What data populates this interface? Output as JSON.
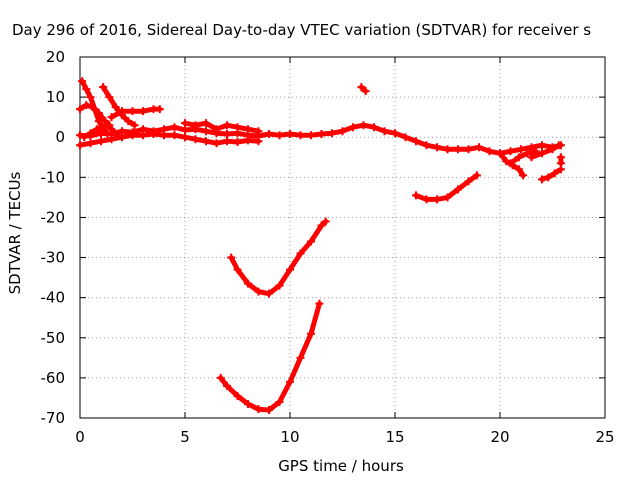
{
  "chart_data": {
    "type": "scatter",
    "title": "Day 296 of 2016, Sidereal Day-to-day VTEC variation (SDTVAR) for receiver s",
    "xlabel": "GPS time / hours",
    "ylabel": "SDTVAR / TECUs",
    "xlim": [
      0,
      25
    ],
    "ylim": [
      -70,
      20
    ],
    "xticks": [
      0,
      5,
      10,
      15,
      20,
      25
    ],
    "yticks": [
      -70,
      -60,
      -50,
      -40,
      -30,
      -20,
      -10,
      0,
      10,
      20
    ],
    "grid": true,
    "legend": "none",
    "marker": "plus",
    "series_color": "#ff0000",
    "series": [
      {
        "points": [
          [
            0.0,
            0.5
          ],
          [
            0.5,
            0.3
          ],
          [
            1.0,
            1.0
          ],
          [
            1.5,
            0.8
          ],
          [
            2.0,
            1.5
          ],
          [
            2.5,
            1.2
          ],
          [
            3.0,
            2.0
          ],
          [
            3.5,
            1.5
          ],
          [
            4.0,
            2.0
          ],
          [
            4.5,
            2.5
          ],
          [
            5.0,
            1.8
          ],
          [
            5.5,
            2.0
          ],
          [
            6.0,
            1.5
          ],
          [
            6.5,
            1.0
          ],
          [
            7.0,
            0.8
          ],
          [
            7.5,
            1.0
          ],
          [
            8.0,
            0.5
          ],
          [
            8.5,
            0.3
          ],
          [
            9.0,
            0.8
          ],
          [
            9.5,
            0.5
          ],
          [
            10.0,
            0.8
          ],
          [
            10.5,
            0.5
          ],
          [
            11.0,
            0.5
          ],
          [
            11.5,
            0.8
          ],
          [
            12.0,
            1.0
          ],
          [
            12.5,
            1.5
          ],
          [
            13.0,
            2.5
          ],
          [
            13.5,
            3.0
          ],
          [
            14.0,
            2.5
          ],
          [
            14.5,
            1.5
          ],
          [
            15.0,
            1.0
          ],
          [
            15.5,
            0.0
          ],
          [
            16.0,
            -1.0
          ],
          [
            16.5,
            -2.0
          ],
          [
            17.0,
            -2.5
          ],
          [
            17.5,
            -3.0
          ],
          [
            18.0,
            -3.0
          ],
          [
            18.5,
            -3.0
          ],
          [
            19.0,
            -2.5
          ],
          [
            19.5,
            -3.5
          ],
          [
            20.0,
            -4.0
          ],
          [
            20.5,
            -3.5
          ],
          [
            21.0,
            -3.0
          ],
          [
            21.5,
            -2.5
          ],
          [
            22.0,
            -2.0
          ],
          [
            22.5,
            -2.5
          ],
          [
            22.9,
            -2.0
          ]
        ]
      },
      {
        "points": [
          [
            0.0,
            -2.0
          ],
          [
            0.5,
            -1.5
          ],
          [
            1.0,
            -1.0
          ],
          [
            1.5,
            -0.5
          ],
          [
            2.0,
            0.0
          ],
          [
            2.5,
            0.5
          ],
          [
            3.0,
            0.5
          ],
          [
            3.5,
            0.8
          ],
          [
            4.0,
            0.5
          ],
          [
            4.5,
            0.5
          ],
          [
            5.0,
            0.0
          ],
          [
            5.5,
            -0.5
          ],
          [
            6.0,
            -1.0
          ],
          [
            6.5,
            -1.5
          ],
          [
            7.0,
            -1.0
          ],
          [
            7.5,
            -1.2
          ],
          [
            8.0,
            -0.8
          ],
          [
            8.5,
            -1.0
          ]
        ]
      },
      {
        "points": [
          [
            5.0,
            3.5
          ],
          [
            5.5,
            3.0
          ],
          [
            6.0,
            3.5
          ],
          [
            6.5,
            2.0
          ],
          [
            7.0,
            3.0
          ],
          [
            7.5,
            2.5
          ],
          [
            8.0,
            2.0
          ],
          [
            8.5,
            1.5
          ]
        ]
      },
      {
        "points": [
          [
            0.1,
            14.0
          ],
          [
            0.3,
            12.0
          ],
          [
            0.5,
            10.0
          ],
          [
            0.7,
            7.0
          ],
          [
            0.9,
            4.0
          ],
          [
            1.1,
            2.0
          ],
          [
            1.3,
            1.0
          ]
        ]
      },
      {
        "points": [
          [
            0.0,
            7.0
          ],
          [
            0.3,
            8.0
          ],
          [
            0.6,
            7.5
          ],
          [
            0.9,
            6.0
          ],
          [
            1.2,
            4.0
          ],
          [
            1.5,
            2.0
          ],
          [
            1.8,
            0.5
          ]
        ]
      },
      {
        "points": [
          [
            1.1,
            12.5
          ],
          [
            1.4,
            10.0
          ],
          [
            1.7,
            7.5
          ],
          [
            2.0,
            5.5
          ],
          [
            2.3,
            4.0
          ],
          [
            2.6,
            3.0
          ]
        ]
      },
      {
        "points": [
          [
            1.5,
            5.0
          ],
          [
            2.0,
            6.5
          ],
          [
            2.5,
            6.5
          ],
          [
            3.0,
            6.5
          ],
          [
            3.5,
            7.0
          ],
          [
            3.8,
            7.0
          ]
        ]
      },
      {
        "points": [
          [
            0.2,
            0.0
          ],
          [
            0.5,
            1.0
          ],
          [
            0.8,
            2.0
          ],
          [
            1.1,
            2.5
          ],
          [
            1.4,
            3.0
          ]
        ]
      },
      {
        "points": [
          [
            20.0,
            -4.0
          ],
          [
            20.3,
            -6.0
          ],
          [
            20.6,
            -7.0
          ],
          [
            20.9,
            -8.0
          ],
          [
            21.1,
            -9.5
          ]
        ]
      },
      {
        "points": [
          [
            20.5,
            -6.5
          ],
          [
            20.9,
            -5.0
          ],
          [
            21.3,
            -4.0
          ],
          [
            21.7,
            -3.5
          ]
        ]
      },
      {
        "points": [
          [
            21.5,
            -5.0
          ],
          [
            22.0,
            -4.0
          ],
          [
            22.5,
            -3.0
          ],
          [
            22.8,
            -2.0
          ]
        ]
      },
      {
        "points": [
          [
            22.0,
            -10.5
          ],
          [
            22.3,
            -10.0
          ],
          [
            22.6,
            -9.0
          ],
          [
            22.9,
            -8.0
          ]
        ]
      },
      {
        "points": [
          [
            22.9,
            -5.0
          ],
          [
            22.9,
            -6.5
          ]
        ]
      },
      {
        "points": [
          [
            13.4,
            12.5
          ],
          [
            13.6,
            11.5
          ]
        ]
      },
      {
        "points": [
          [
            16.0,
            -14.5
          ],
          [
            16.5,
            -15.5
          ],
          [
            17.0,
            -15.5
          ],
          [
            17.5,
            -15.0
          ],
          [
            18.0,
            -13.0
          ],
          [
            18.5,
            -11.0
          ],
          [
            18.9,
            -9.5
          ]
        ]
      },
      {
        "points": [
          [
            7.2,
            -30.0
          ],
          [
            7.5,
            -33.0
          ],
          [
            8.0,
            -36.5
          ],
          [
            8.5,
            -38.5
          ],
          [
            9.0,
            -39.0
          ],
          [
            9.5,
            -37.0
          ],
          [
            10.0,
            -33.0
          ],
          [
            10.5,
            -29.0
          ],
          [
            11.0,
            -26.0
          ],
          [
            11.5,
            -22.0
          ],
          [
            11.7,
            -21.0
          ]
        ]
      },
      {
        "points": [
          [
            6.7,
            -60.0
          ],
          [
            7.0,
            -62.0
          ],
          [
            7.5,
            -64.5
          ],
          [
            8.0,
            -66.5
          ],
          [
            8.5,
            -67.8
          ],
          [
            9.0,
            -68.0
          ],
          [
            9.5,
            -66.0
          ],
          [
            10.0,
            -61.0
          ],
          [
            10.5,
            -55.0
          ],
          [
            11.0,
            -49.0
          ],
          [
            11.4,
            -41.5
          ]
        ]
      }
    ]
  }
}
